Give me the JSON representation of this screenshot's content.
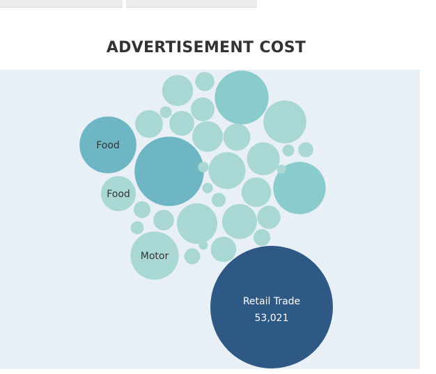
{
  "title": "ADVERTISEMENT COST",
  "colors": {
    "background_panel": "#e8f0f6",
    "bubble_light": "#a9d8d4",
    "bubble_medium": "#8acbcd",
    "bubble_dark": "#6fb6c4",
    "highlight": "#2e5985",
    "label_dark": "#333333",
    "label_light": "#ffffff"
  },
  "chart_data": {
    "type": "bubble",
    "title": "ADVERTISEMENT COST",
    "highlight_label": "Retail Trade",
    "highlight_value": "53,021",
    "labels": [
      "Food",
      "Food",
      "Motor",
      "Retail Trade"
    ],
    "bubbles": [
      {
        "label": "Retail Trade",
        "value": 53021,
        "shade": "highlight"
      },
      {
        "label": "",
        "value": 17000,
        "shade": "dark"
      },
      {
        "label": "Food",
        "value": 11400,
        "shade": "dark"
      },
      {
        "label": "",
        "value": 10200,
        "shade": "medium"
      },
      {
        "label": "",
        "value": 9700,
        "shade": "medium"
      },
      {
        "label": "",
        "value": 6500,
        "shade": "light"
      },
      {
        "label": "Motor",
        "value": 8200,
        "shade": "light"
      },
      {
        "label": "",
        "value": 5800,
        "shade": "light"
      },
      {
        "label": "",
        "value": 4800,
        "shade": "light"
      },
      {
        "label": "",
        "value": 4300,
        "shade": "light"
      },
      {
        "label": "Food",
        "value": 4300,
        "shade": "light"
      },
      {
        "label": "",
        "value": 3800,
        "shade": "light"
      },
      {
        "label": "",
        "value": 3400,
        "shade": "light"
      },
      {
        "label": "",
        "value": 3300,
        "shade": "light"
      },
      {
        "label": "",
        "value": 3100,
        "shade": "light"
      },
      {
        "label": "",
        "value": 2700,
        "shade": "light"
      },
      {
        "label": "",
        "value": 2600,
        "shade": "light"
      },
      {
        "label": "",
        "value": 2300,
        "shade": "light"
      },
      {
        "label": "",
        "value": 2200,
        "shade": "light"
      },
      {
        "label": "",
        "value": 2000,
        "shade": "light"
      },
      {
        "label": "",
        "value": 1900,
        "shade": "light"
      },
      {
        "label": "",
        "value": 1500,
        "shade": "light"
      },
      {
        "label": "",
        "value": 1300,
        "shade": "light"
      },
      {
        "label": "",
        "value": 1000,
        "shade": "light"
      },
      {
        "label": "",
        "value": 1000,
        "shade": "light"
      },
      {
        "label": "",
        "value": 900,
        "shade": "light"
      },
      {
        "label": "",
        "value": 800,
        "shade": "light"
      },
      {
        "label": "",
        "value": 700,
        "shade": "light"
      },
      {
        "label": "",
        "value": 600,
        "shade": "light"
      },
      {
        "label": "",
        "value": 500,
        "shade": "light"
      },
      {
        "label": "",
        "value": 500,
        "shade": "light"
      },
      {
        "label": "",
        "value": 400,
        "shade": "light"
      },
      {
        "label": "",
        "value": 400,
        "shade": "light"
      },
      {
        "label": "",
        "value": 300,
        "shade": "light"
      },
      {
        "label": "",
        "value": 300,
        "shade": "light"
      }
    ]
  }
}
